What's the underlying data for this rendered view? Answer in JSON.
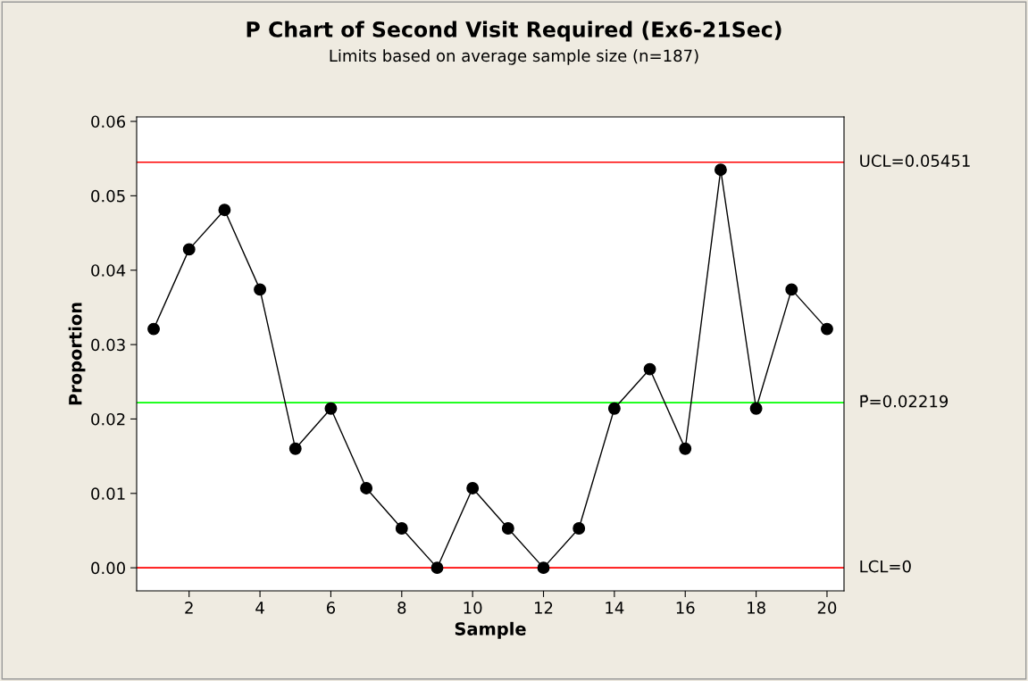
{
  "chart_data": {
    "type": "line",
    "title": "P Chart of Second Visit Required (Ex6-21Sec)",
    "subtitle": "Limits based on average sample size (n=187)",
    "xlabel": "Sample",
    "ylabel": "Proportion",
    "x": [
      1,
      2,
      3,
      4,
      5,
      6,
      7,
      8,
      9,
      10,
      11,
      12,
      13,
      14,
      15,
      16,
      17,
      18,
      19,
      20
    ],
    "series": [
      {
        "color": "#000000",
        "values": [
          0.0321,
          0.0428,
          0.0481,
          0.0374,
          0.016,
          0.0214,
          0.0107,
          0.0053,
          0.0,
          0.0107,
          0.0053,
          0.0,
          0.0053,
          0.0214,
          0.0267,
          0.016,
          0.0535,
          0.0214,
          0.0374,
          0.0321
        ]
      }
    ],
    "xlim": [
      0.52,
      20.48
    ],
    "xticks": [
      2,
      4,
      6,
      8,
      10,
      12,
      14,
      16,
      18,
      20
    ],
    "ylim": [
      -0.0031,
      0.0606
    ],
    "yticks": [
      {
        "value": 0,
        "label": "0.00"
      },
      {
        "value": 0.01,
        "label": "0.01"
      },
      {
        "value": 0.02,
        "label": "0.02"
      },
      {
        "value": 0.03,
        "label": "0.03"
      },
      {
        "value": 0.04,
        "label": "0.04"
      },
      {
        "value": 0.05,
        "label": "0.05"
      },
      {
        "value": 0.06,
        "label": "0.06"
      }
    ],
    "ref_lines": [
      {
        "axis": "y",
        "value": 0.05451,
        "label": "UCL=0.05451",
        "color": "#ff0000"
      },
      {
        "axis": "y",
        "value": 0.02219,
        "label": "P̄=0.02219",
        "color": "#00ff00"
      },
      {
        "axis": "y",
        "value": 0,
        "label": "LCL=0",
        "color": "#ff0000"
      }
    ],
    "marker": "circle",
    "line_style": "solid",
    "grid": false,
    "legend": false
  }
}
